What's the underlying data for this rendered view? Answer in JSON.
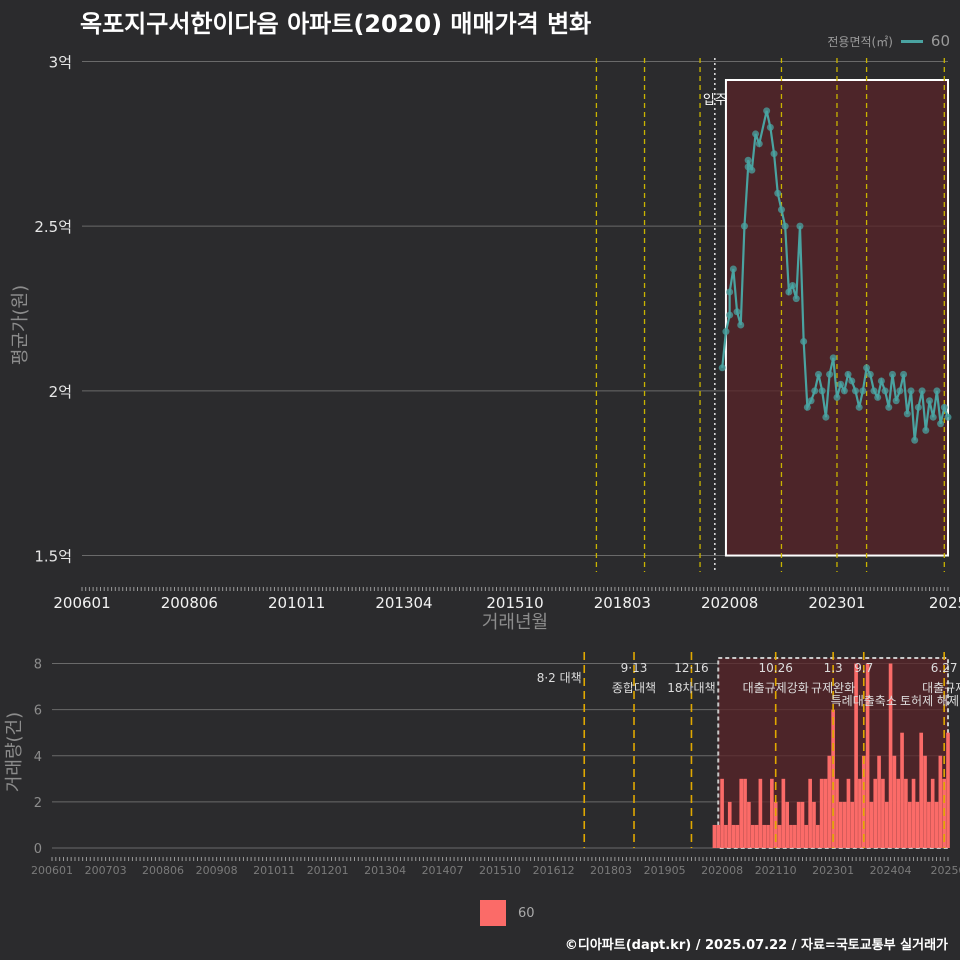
{
  "title": "옥포지구서한이다음 아파트(2020) 매매가격 변화",
  "legend_top": {
    "title": "전용면적(㎡)",
    "entries": [
      "60"
    ],
    "color": "#4aa3a1"
  },
  "legend_bottom": {
    "entries": [
      "60"
    ],
    "color": "#fb6b68"
  },
  "credit": "©디아파트(dapt.kr) / 2025.07.22 / 자료=국토교통부 실거래가",
  "chart_data": [
    {
      "type": "line",
      "title": "옥포지구서한이다음 아파트(2020) 매매가격 변화",
      "xlabel": "거래년월",
      "ylabel": "평균가(원)",
      "ylim": [
        1.45,
        3.05
      ],
      "y_ticks": [
        1.5,
        2.0,
        2.5,
        3.0
      ],
      "y_tick_labels": [
        "1.5억",
        "2억",
        "2.5억",
        "3억"
      ],
      "x_tick_labels": [
        "200601",
        "200806",
        "201011",
        "201304",
        "201510",
        "201803",
        "202008",
        "202301",
        "2025"
      ],
      "policy_lines": [
        "2017-08",
        "2018-09",
        "2019-12",
        "2021-10",
        "2023-01",
        "2023-09",
        "2025-06"
      ],
      "annotation": "입주",
      "highlight_range": [
        "2020-07",
        "2025-07"
      ],
      "series": [
        {
          "name": "60",
          "x": [
            "2020-06",
            "2020-07",
            "2020-08",
            "2020-08",
            "2020-09",
            "2020-10",
            "2020-11",
            "2020-12",
            "2021-01",
            "2021-01",
            "2021-02",
            "2021-03",
            "2021-04",
            "2021-06",
            "2021-07",
            "2021-08",
            "2021-09",
            "2021-10",
            "2021-11",
            "2021-12",
            "2022-01",
            "2022-02",
            "2022-03",
            "2022-04",
            "2022-05",
            "2022-06",
            "2022-07",
            "2022-08",
            "2022-09",
            "2022-10",
            "2022-11",
            "2022-12",
            "2023-01",
            "2023-02",
            "2023-03",
            "2023-04",
            "2023-05",
            "2023-06",
            "2023-07",
            "2023-08",
            "2023-09",
            "2023-10",
            "2023-11",
            "2023-12",
            "2024-01",
            "2024-02",
            "2024-03",
            "2024-04",
            "2024-05",
            "2024-06",
            "2024-07",
            "2024-08",
            "2024-09",
            "2024-10",
            "2024-11",
            "2024-12",
            "2025-01",
            "2025-02",
            "2025-03",
            "2025-04",
            "2025-05",
            "2025-06",
            "2025-07"
          ],
          "values": [
            2.07,
            2.18,
            2.23,
            2.3,
            2.37,
            2.24,
            2.2,
            2.5,
            2.68,
            2.7,
            2.67,
            2.78,
            2.75,
            2.85,
            2.8,
            2.72,
            2.6,
            2.55,
            2.5,
            2.3,
            2.32,
            2.28,
            2.5,
            2.15,
            1.95,
            1.97,
            2.0,
            2.05,
            2.0,
            1.92,
            2.05,
            2.1,
            1.98,
            2.02,
            2.0,
            2.05,
            2.03,
            2.0,
            1.95,
            2.0,
            2.07,
            2.05,
            2.0,
            1.98,
            2.03,
            2.0,
            1.95,
            2.05,
            1.97,
            2.0,
            2.05,
            1.93,
            2.0,
            1.85,
            1.95,
            2.0,
            1.88,
            1.97,
            1.92,
            2.0,
            1.9,
            1.95,
            1.92
          ]
        }
      ]
    },
    {
      "type": "bar",
      "xlabel": "",
      "ylabel": "거래량(건)",
      "ylim": [
        0,
        8.5
      ],
      "y_ticks": [
        0,
        2,
        4,
        6,
        8
      ],
      "x_tick_labels": [
        "200601",
        "200703",
        "200806",
        "200908",
        "201011",
        "201201",
        "201304",
        "201407",
        "201510",
        "201612",
        "201803",
        "201905",
        "202008",
        "202110",
        "202301",
        "202404",
        "20250"
      ],
      "policy_annotations": [
        {
          "date": "2017-08",
          "label": "8·2 대책"
        },
        {
          "date": "2018-09",
          "label": "9·13\n종합대책"
        },
        {
          "date": "2019-12",
          "label": "12·16\n18차대책"
        },
        {
          "date": "2021-10",
          "label": "10.26\n대출규제강화"
        },
        {
          "date": "2023-01",
          "label": "1.3\n규제완화"
        },
        {
          "date": "2023-09",
          "label": "9.7\n특례대출축소"
        },
        {
          "date": "2025-06",
          "label": "6.27\n대출규제"
        }
      ],
      "extra_labels": [
        "토허제 해제"
      ],
      "series": [
        {
          "name": "60",
          "x": [
            "2020-06",
            "2020-07",
            "2020-08",
            "2020-09",
            "2020-10",
            "2020-11",
            "2020-12",
            "2021-01",
            "2021-02",
            "2021-03",
            "2021-04",
            "2021-05",
            "2021-06",
            "2021-07",
            "2021-08",
            "2021-09",
            "2021-10",
            "2021-11",
            "2021-12",
            "2022-01",
            "2022-02",
            "2022-03",
            "2022-04",
            "2022-05",
            "2022-06",
            "2022-07",
            "2022-08",
            "2022-09",
            "2022-10",
            "2022-11",
            "2022-12",
            "2023-01",
            "2023-02",
            "2023-03",
            "2023-04",
            "2023-05",
            "2023-06",
            "2023-07",
            "2023-08",
            "2023-09",
            "2023-10",
            "2023-11",
            "2023-12",
            "2024-01",
            "2024-02",
            "2024-03",
            "2024-04",
            "2024-05",
            "2024-06",
            "2024-07",
            "2024-08",
            "2024-09",
            "2024-10",
            "2024-11",
            "2024-12",
            "2025-01",
            "2025-02",
            "2025-03",
            "2025-04",
            "2025-05",
            "2025-06",
            "2025-07"
          ],
          "values": [
            1,
            1,
            3,
            1,
            2,
            1,
            1,
            3,
            3,
            2,
            1,
            1,
            3,
            1,
            1,
            3,
            2,
            1,
            3,
            2,
            1,
            1,
            2,
            2,
            1,
            3,
            2,
            1,
            3,
            3,
            4,
            6,
            3,
            2,
            2,
            3,
            2,
            8,
            3,
            4,
            8,
            2,
            3,
            4,
            3,
            2,
            8,
            4,
            3,
            5,
            3,
            2,
            3,
            2,
            5,
            4,
            2,
            3,
            2,
            4,
            3,
            5
          ]
        }
      ]
    }
  ]
}
